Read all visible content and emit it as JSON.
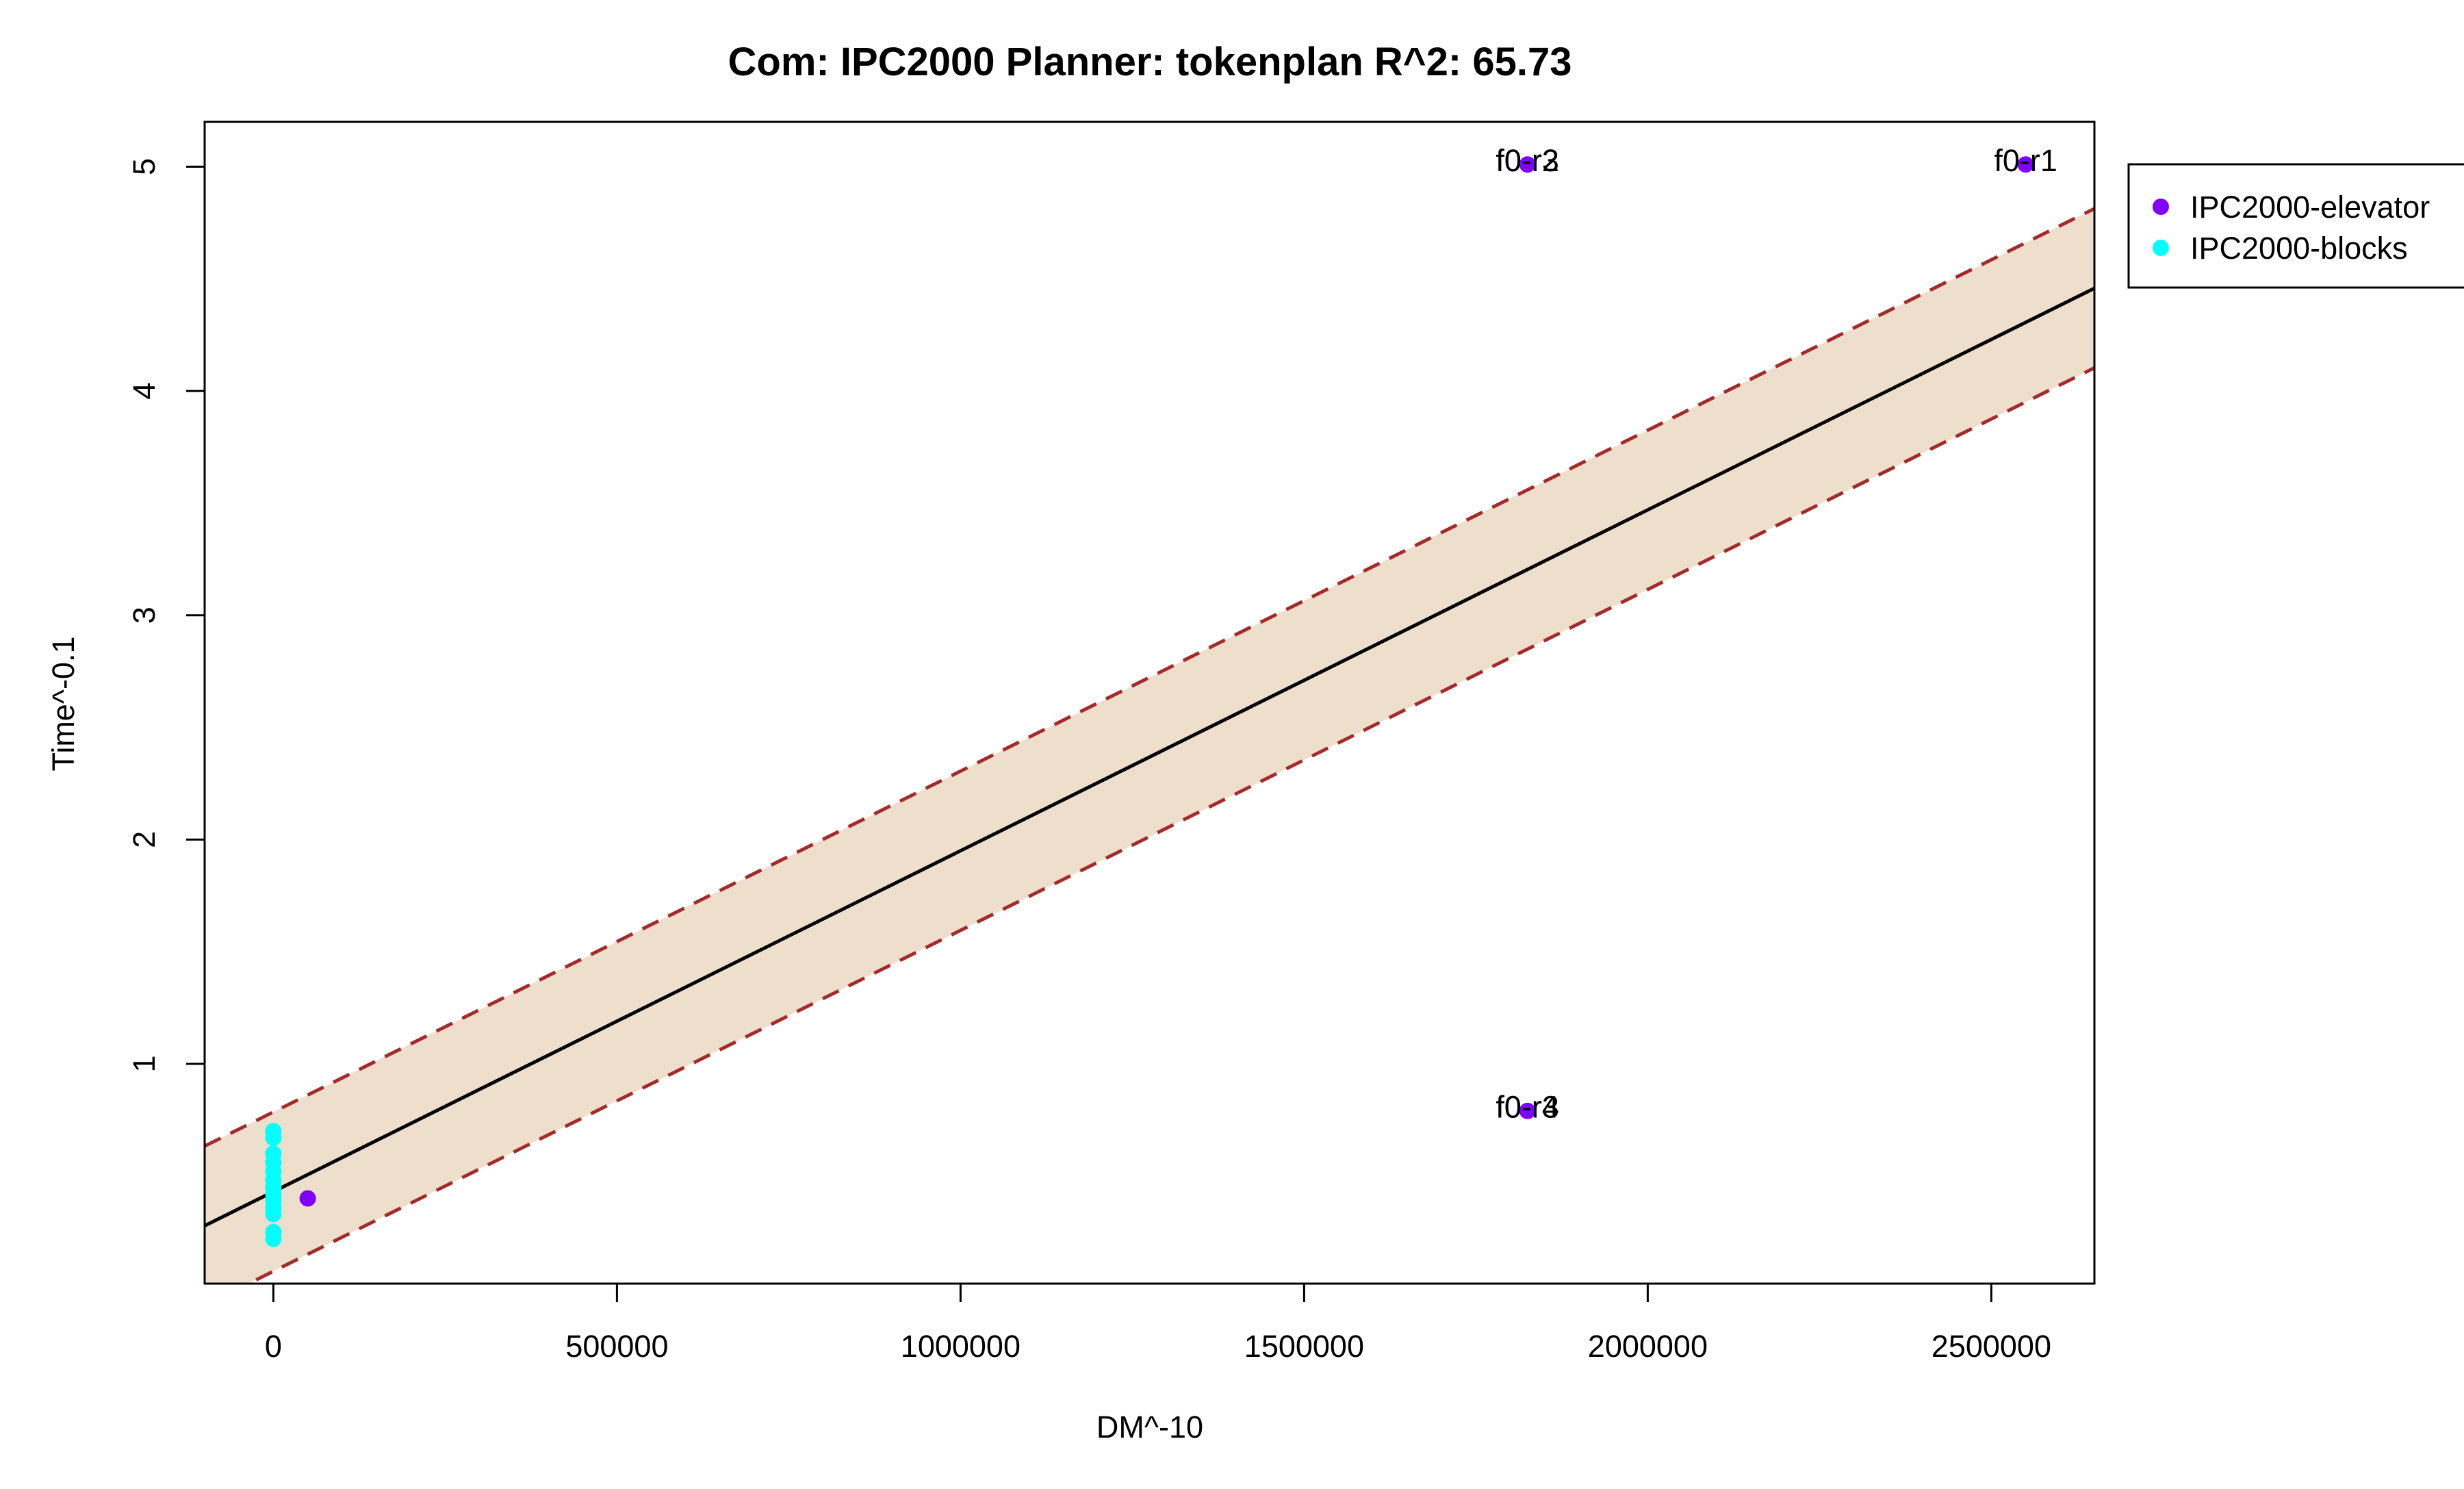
{
  "chart_data": {
    "type": "scatter",
    "title": "Com: IPC2000 Planner: tokenplan R^2: 65.73",
    "xlabel": "DM^-10",
    "ylabel": "Time^-0.1",
    "xlim": [
      -100000,
      2650000
    ],
    "ylim": [
      0.02,
      5.2
    ],
    "xticks": [
      0,
      500000,
      1000000,
      1500000,
      2000000,
      2500000
    ],
    "xtick_labels": [
      "0",
      "500000",
      "1000000",
      "1500000",
      "2000000",
      "2500000"
    ],
    "yticks": [
      1,
      2,
      3,
      4,
      5
    ],
    "ytick_labels": [
      "1",
      "2",
      "3",
      "4",
      "5"
    ],
    "grid": false,
    "legend_position": "top-right outside plot",
    "colors": {
      "band_fill": "#eedfcc",
      "fit_line": "#000000",
      "bound_line": "#a52a2a",
      "elevator": "#8000ff",
      "blocks": "#00ffff"
    },
    "fit": {
      "intercept": 0.43,
      "slope": 1.52e-06,
      "band_halfwidth": 0.355
    },
    "series": [
      {
        "name": "IPC2000-elevator",
        "color": "#8000ff",
        "points": [
          {
            "x": 1825000,
            "y": 5.01,
            "label": "f0-r2"
          },
          {
            "x": 2550000,
            "y": 5.01,
            "label": "f0-r1"
          },
          {
            "x": 1825000,
            "y": 0.79,
            "label": "f0-r4"
          },
          {
            "x": 50000,
            "y": 0.4,
            "label": ""
          }
        ]
      },
      {
        "name": "IPC2000-blocks",
        "color": "#00ffff",
        "points": [
          {
            "x": 0,
            "y": 0.7
          },
          {
            "x": 0,
            "y": 0.67
          },
          {
            "x": 0,
            "y": 0.6
          },
          {
            "x": 0,
            "y": 0.56
          },
          {
            "x": 0,
            "y": 0.52
          },
          {
            "x": 0,
            "y": 0.48
          },
          {
            "x": 0,
            "y": 0.45
          },
          {
            "x": 0,
            "y": 0.42
          },
          {
            "x": 0,
            "y": 0.39
          },
          {
            "x": 0,
            "y": 0.36
          },
          {
            "x": 0,
            "y": 0.33
          },
          {
            "x": 0,
            "y": 0.25
          },
          {
            "x": 0,
            "y": 0.22
          }
        ]
      }
    ],
    "point_labels": [
      {
        "x": 1825000,
        "y": 5.01,
        "text": "f0-r2"
      },
      {
        "x": 1825000,
        "y": 5.01,
        "text": "f0-r3"
      },
      {
        "x": 2550000,
        "y": 5.01,
        "text": "f0-r1"
      },
      {
        "x": 1825000,
        "y": 0.79,
        "text": "f0-r4"
      },
      {
        "x": 1825000,
        "y": 0.79,
        "text": "f0-r3"
      }
    ]
  }
}
